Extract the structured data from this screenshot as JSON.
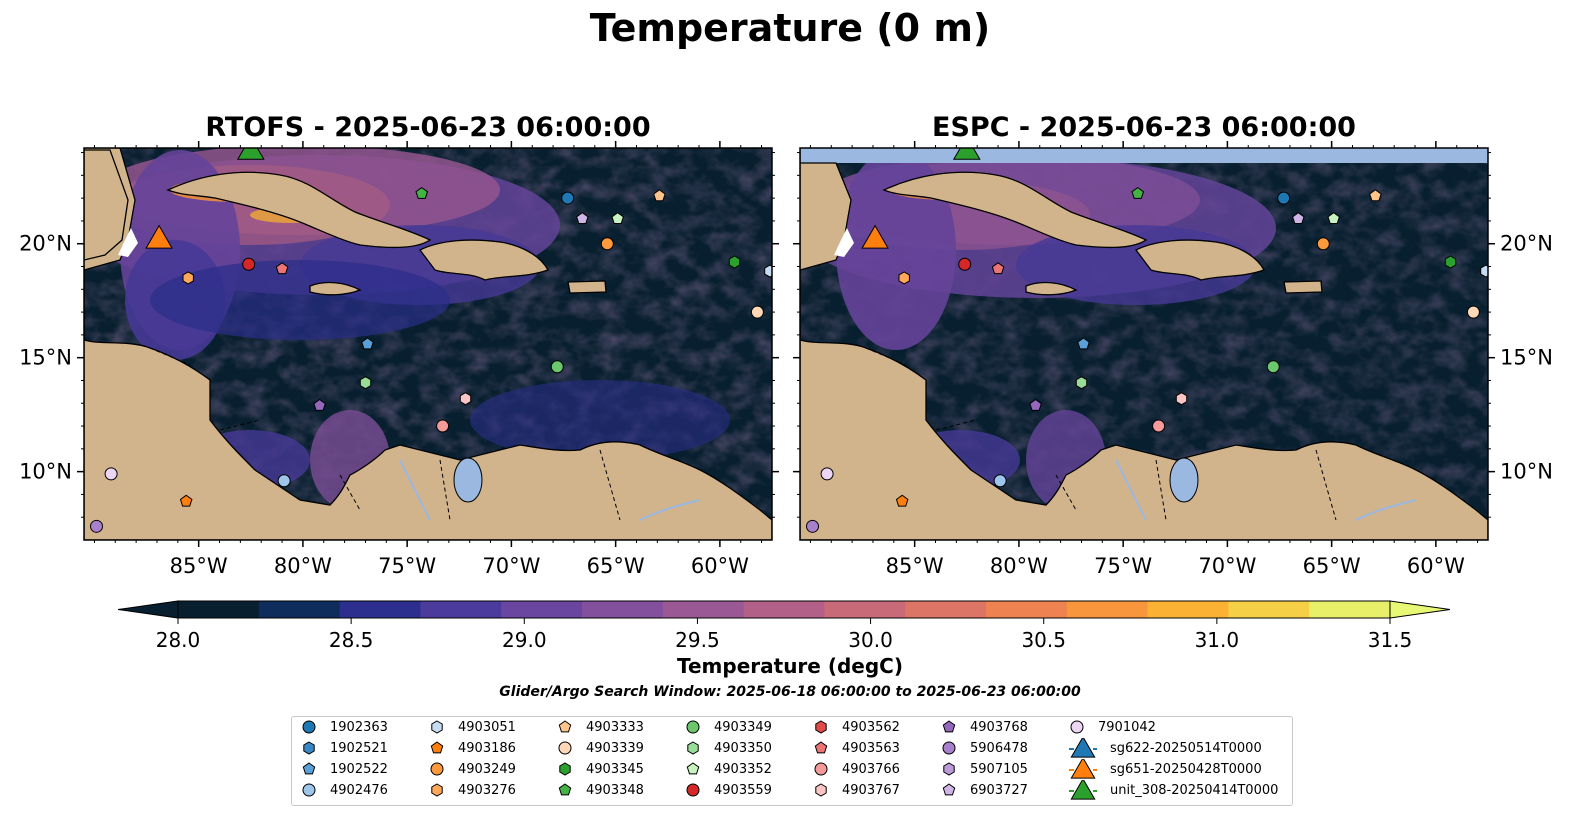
{
  "figure": {
    "title": "Temperature (0 m)",
    "search_window": "Glider/Argo Search Window: 2025-06-18 06:00:00 to 2025-06-23 06:00:00"
  },
  "panels": [
    {
      "title": "RTOFS - 2025-06-23 06:00:00",
      "model": "RTOFS"
    },
    {
      "title": "ESPC - 2025-06-23 06:00:00",
      "model": "ESPC"
    }
  ],
  "map": {
    "lon_range": [
      -90.5,
      -57.5
    ],
    "lat_range": [
      7,
      24.2
    ],
    "lon_ticks": [
      "85°W",
      "80°W",
      "75°W",
      "70°W",
      "65°W",
      "60°W"
    ],
    "lat_ticks": [
      "20°N",
      "15°N",
      "10°N"
    ],
    "land_color": "#d2b48c",
    "lake_color": "#9ab8e0"
  },
  "colorbar": {
    "label": "Temperature (degC)",
    "min": 28.0,
    "max": 31.5,
    "ticks": [
      "28.0",
      "28.5",
      "29.0",
      "29.5",
      "30.0",
      "30.5",
      "31.0",
      "31.5"
    ],
    "extend": "both",
    "colors": [
      "#071f2e",
      "#0e2c5c",
      "#2c2f8e",
      "#4a3b9c",
      "#6a46a0",
      "#82509c",
      "#9a5894",
      "#b26087",
      "#c86a78",
      "#dc7565",
      "#ee8250",
      "#f8963e",
      "#fbb234",
      "#f5d046",
      "#e8f06a"
    ],
    "over_color": "#e8f874",
    "under_color": "#071f2e"
  },
  "legend": [
    {
      "label": "1902363",
      "marker": "circle",
      "color": "#1f77b4",
      "lon": -67.3,
      "lat": 22.0
    },
    {
      "label": "1902521",
      "marker": "hexagon",
      "color": "#3a87c4",
      "lon": null,
      "lat": null
    },
    {
      "label": "1902522",
      "marker": "pentagon",
      "color": "#5aa0d8",
      "lon": -76.9,
      "lat": 15.6
    },
    {
      "label": "4902476",
      "marker": "circle",
      "color": "#9ec6ea",
      "lon": -80.9,
      "lat": 9.6
    },
    {
      "label": "4903051",
      "marker": "hexagon",
      "color": "#c6dcf2",
      "lon": -57.6,
      "lat": 18.8
    },
    {
      "label": "4903186",
      "marker": "pentagon",
      "color": "#ff7f0e",
      "lon": -85.6,
      "lat": 8.7
    },
    {
      "label": "4903249",
      "marker": "circle",
      "color": "#ff9a3c",
      "lon": -65.4,
      "lat": 20.0
    },
    {
      "label": "4903276",
      "marker": "hexagon",
      "color": "#ffa85a",
      "lon": -85.5,
      "lat": 18.5
    },
    {
      "label": "4903333",
      "marker": "pentagon",
      "color": "#ffc48a",
      "lon": -62.9,
      "lat": 22.1
    },
    {
      "label": "4903339",
      "marker": "circle",
      "color": "#ffd8b8",
      "lon": -58.2,
      "lat": 17.0
    },
    {
      "label": "4903345",
      "marker": "hexagon",
      "color": "#2ca02c",
      "lon": -59.3,
      "lat": 19.2
    },
    {
      "label": "4903348",
      "marker": "pentagon",
      "color": "#44b244",
      "lon": -74.3,
      "lat": 22.2
    },
    {
      "label": "4903349",
      "marker": "circle",
      "color": "#6cc66c",
      "lon": -67.8,
      "lat": 14.6
    },
    {
      "label": "4903350",
      "marker": "hexagon",
      "color": "#98dc98",
      "lon": -77.0,
      "lat": 13.9
    },
    {
      "label": "4903352",
      "marker": "pentagon",
      "color": "#c8f2c0",
      "lon": -64.9,
      "lat": 21.1
    },
    {
      "label": "4903559",
      "marker": "circle",
      "color": "#d62728",
      "lon": -82.6,
      "lat": 19.1
    },
    {
      "label": "4903562",
      "marker": "hexagon",
      "color": "#e04a4a",
      "lon": null,
      "lat": null
    },
    {
      "label": "4903563",
      "marker": "pentagon",
      "color": "#ec7474",
      "lon": -81.0,
      "lat": 18.9
    },
    {
      "label": "4903766",
      "marker": "circle",
      "color": "#f49a9a",
      "lon": -73.3,
      "lat": 12.0
    },
    {
      "label": "4903767",
      "marker": "hexagon",
      "color": "#fcc4c4",
      "lon": -72.2,
      "lat": 13.2
    },
    {
      "label": "4903768",
      "marker": "pentagon",
      "color": "#9467bd",
      "lon": -79.2,
      "lat": 12.9
    },
    {
      "label": "5906478",
      "marker": "circle",
      "color": "#a880cc",
      "lon": -89.9,
      "lat": 7.6
    },
    {
      "label": "5907105",
      "marker": "hexagon",
      "color": "#bc9ad8",
      "lon": null,
      "lat": null
    },
    {
      "label": "6903727",
      "marker": "pentagon",
      "color": "#cfb4e6",
      "lon": -66.6,
      "lat": 21.1
    },
    {
      "label": "7901042",
      "marker": "circle",
      "color": "#ecd6f4",
      "lon": -89.2,
      "lat": 9.9
    },
    {
      "label": "sg622-20250514T0000",
      "marker": "triangle",
      "color": "#1f77b4",
      "lon": null,
      "lat": null
    },
    {
      "label": "sg651-20250428T0000",
      "marker": "triangle",
      "color": "#ff7f0e",
      "lon": -86.9,
      "lat": 20.3
    },
    {
      "label": "unit_308-20250414T0000",
      "marker": "triangle",
      "color": "#2ca02c",
      "lon": -82.5,
      "lat": 24.2
    }
  ]
}
